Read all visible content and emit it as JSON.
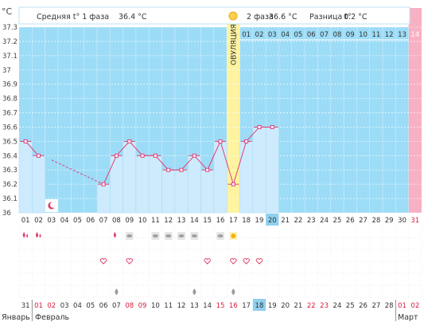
{
  "header": {
    "unit": "°C",
    "phase1_label": "Средняя t° 1 фаза",
    "phase1_value": "36.4 °C",
    "phase2_label": "2 фаза",
    "phase2_value": "36.6 °C",
    "diff_label": "Разница t°",
    "diff_value": "0.2 °C"
  },
  "ovulation_label": "ОВУЛЯЦИЯ",
  "colors": {
    "bg": "#9ddcf7",
    "bar": "#cdebfc",
    "line": "#e0407a",
    "ovulation": "#fdf3a0",
    "next_cycle": "#f8b0c4",
    "red_text": "#d81b3c"
  },
  "chart_data": {
    "type": "line",
    "title": "",
    "xlabel": "",
    "ylabel": "°C",
    "ylim": [
      36.0,
      37.3
    ],
    "yticks": [
      "37.3",
      "37.2",
      "37.1",
      "37",
      "36.9",
      "36.8",
      "36.7",
      "36.6",
      "36.5",
      "36.4",
      "36.3",
      "36.2",
      "36.1",
      "36"
    ],
    "x": [
      "01",
      "02",
      "03",
      "04",
      "05",
      "06",
      "07",
      "08",
      "09",
      "10",
      "11",
      "12",
      "13",
      "14",
      "15",
      "16",
      "17",
      "18",
      "19",
      "20",
      "21",
      "22",
      "23",
      "24",
      "25",
      "26",
      "27",
      "28",
      "29",
      "30",
      "31"
    ],
    "values": [
      36.5,
      36.4,
      null,
      null,
      null,
      null,
      36.2,
      36.4,
      36.5,
      36.4,
      36.4,
      36.3,
      36.3,
      36.4,
      36.3,
      36.5,
      36.2,
      36.5,
      36.6,
      36.6,
      null,
      null,
      null,
      null,
      null,
      null,
      null,
      null,
      null,
      null,
      null
    ],
    "dashed_from_index": 2,
    "dashed_to_index": 6,
    "ovulation_day": "17",
    "today_day": "20",
    "phase2_days": [
      "01",
      "02",
      "03",
      "04",
      "05",
      "06",
      "07",
      "08",
      "09",
      "10",
      "11",
      "12",
      "13"
    ],
    "next_cycle_day": "14"
  },
  "calendar": {
    "dates": [
      "31",
      "01",
      "02",
      "03",
      "04",
      "05",
      "06",
      "07",
      "08",
      "09",
      "10",
      "11",
      "12",
      "13",
      "14",
      "15",
      "16",
      "17",
      "18",
      "19",
      "20",
      "21",
      "22",
      "23",
      "24",
      "25",
      "26",
      "27",
      "28",
      "01",
      "02"
    ],
    "red_indices": [
      1,
      2,
      8,
      9,
      15,
      16,
      22,
      23,
      29,
      30
    ],
    "today_index": 18,
    "months": [
      "Январь",
      "Февраль",
      "Март"
    ]
  },
  "markers": {
    "period_days": [
      0,
      1,
      7
    ],
    "moon_day": 2,
    "sticker_days": [
      8,
      10,
      11,
      12,
      13,
      15
    ],
    "sun_day": 16,
    "heart_days": [
      6,
      8,
      14,
      16,
      17,
      18
    ],
    "drop_days": [
      7,
      13,
      16
    ]
  },
  "icons": {
    "moon": "moon-icon",
    "sun": "sun-icon",
    "period": "blood-drop-icon",
    "heart": "heart-icon",
    "drop": "discharge-drop-icon",
    "sticker": "eye-icon"
  }
}
